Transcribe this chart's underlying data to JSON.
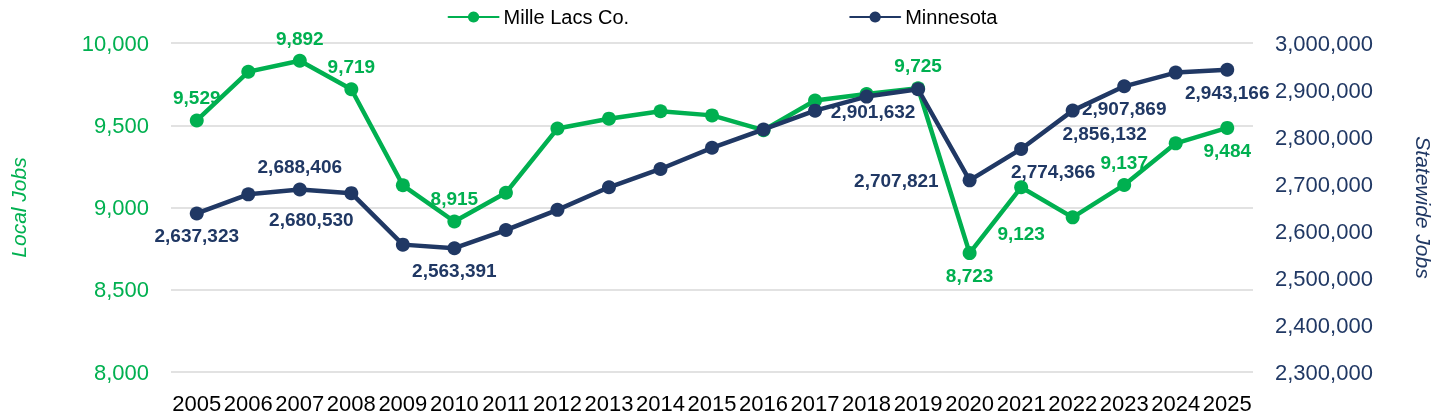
{
  "chart_data": {
    "type": "line",
    "ylabel": "Local Jobs",
    "y2label": "Statewide Jobs",
    "categories": [
      "2005",
      "2006",
      "2007",
      "2008",
      "2009",
      "2010",
      "2011",
      "2012",
      "2013",
      "2014",
      "2015",
      "2016",
      "2017",
      "2018",
      "2019",
      "2020",
      "2021",
      "2022",
      "2023",
      "2024",
      "2025"
    ],
    "series": [
      {
        "name": "Mille Lacs Co.",
        "color": "#00b050",
        "values": [
          9529,
          9825,
          9892,
          9719,
          9135,
          8915,
          9090,
          9480,
          9540,
          9585,
          9560,
          9470,
          9650,
          9690,
          9725,
          8723,
          9123,
          8940,
          9137,
          9390,
          9484
        ],
        "value_labels": [
          "9,529",
          null,
          "9,892",
          "9,719",
          null,
          "8,915",
          null,
          null,
          null,
          null,
          null,
          null,
          null,
          null,
          "9,725",
          "8,723",
          "9,123",
          null,
          "9,137",
          null,
          "9,484"
        ]
      },
      {
        "name": "Minnesota",
        "color": "#203864",
        "axis": "y2",
        "values": [
          2637323,
          2678000,
          2688406,
          2680530,
          2571000,
          2563391,
          2602000,
          2645000,
          2693000,
          2732000,
          2777000,
          2816000,
          2856000,
          2886000,
          2901632,
          2707821,
          2774366,
          2856132,
          2907869,
          2937000,
          2943166
        ],
        "value_labels": [
          "2,637,323",
          null,
          "2,688,406",
          "2,680,530",
          null,
          "2,563,391",
          null,
          null,
          null,
          null,
          null,
          null,
          null,
          null,
          "2,901,632",
          "2,707,821",
          "2,774,366",
          "2,856,132",
          "2,907,869",
          null,
          "2,943,166"
        ]
      }
    ],
    "ylim": [
      8000,
      10000
    ],
    "yticks": [
      {
        "value": 8000,
        "label": "8,000"
      },
      {
        "value": 8500,
        "label": "8,500"
      },
      {
        "value": 9000,
        "label": "9,000"
      },
      {
        "value": 9500,
        "label": "9,500"
      },
      {
        "value": 10000,
        "label": "10,000"
      }
    ],
    "y2lim": [
      2300000,
      3000000
    ],
    "y2ticks": [
      {
        "value": 2300000,
        "label": "2,300,000"
      },
      {
        "value": 2400000,
        "label": "2,400,000"
      },
      {
        "value": 2500000,
        "label": "2,500,000"
      },
      {
        "value": 2600000,
        "label": "2,600,000"
      },
      {
        "value": 2700000,
        "label": "2,700,000"
      },
      {
        "value": 2800000,
        "label": "2,800,000"
      },
      {
        "value": 2900000,
        "label": "2,900,000"
      },
      {
        "value": 3000000,
        "label": "3,000,000"
      }
    ],
    "grid": "y",
    "legend": "top",
    "marker": "circle"
  }
}
